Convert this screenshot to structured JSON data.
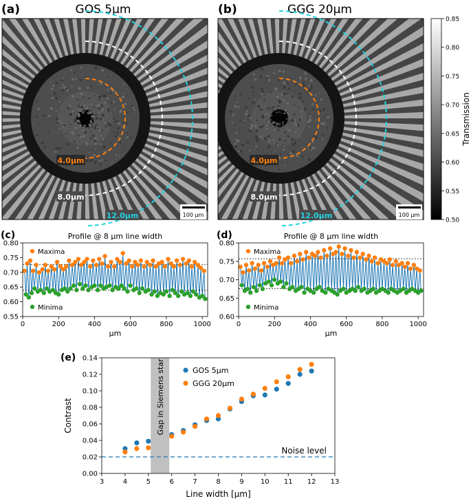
{
  "panels": {
    "a": {
      "letter": "(a)",
      "title": "GOS 5µm",
      "label_4": "4.0µm",
      "label_8": "8.0µm",
      "label_12": "12.0µm",
      "scalebar": "100 µm"
    },
    "b": {
      "letter": "(b)",
      "title": "GGG 20µm",
      "label_4": "4.0µm",
      "label_8": "8.0µm",
      "label_12": "12.0µm",
      "scalebar": "100 µm"
    }
  },
  "colorbar": {
    "label": "Transmission",
    "ticks": [
      "0.85",
      "0.80",
      "0.75",
      "0.70",
      "0.65",
      "0.60",
      "0.55",
      "0.50"
    ]
  },
  "colors": {
    "orange": "#ff7f0e",
    "blue": "#1f77b4",
    "green": "#2ca02c",
    "cyan": "#22d3e0",
    "gray_band": "#c0c0c0"
  },
  "chart_data": [
    {
      "id": "c",
      "letter": "(c)",
      "type": "line",
      "title": "Profile @ 8 µm line width",
      "xlabel": "µm",
      "xlim": [
        0,
        1030
      ],
      "ylim": [
        0.55,
        0.8
      ],
      "xticks": [
        0,
        200,
        400,
        600,
        800,
        1000
      ],
      "yticks": [
        "0.55",
        "0.60",
        "0.65",
        "0.70",
        "0.75",
        "0.80"
      ],
      "legend_maxima": "Maxima",
      "legend_minima": "Minima",
      "maxima_mean": 0.727,
      "minima_mean": 0.639,
      "maxima": [
        [
          10,
          0.705
        ],
        [
          25,
          0.73
        ],
        [
          42,
          0.74
        ],
        [
          58,
          0.705
        ],
        [
          75,
          0.725
        ],
        [
          92,
          0.7
        ],
        [
          110,
          0.71
        ],
        [
          126,
          0.725
        ],
        [
          142,
          0.705
        ],
        [
          160,
          0.72
        ],
        [
          176,
          0.71
        ],
        [
          192,
          0.735
        ],
        [
          210,
          0.72
        ],
        [
          226,
          0.71
        ],
        [
          242,
          0.72
        ],
        [
          258,
          0.74
        ],
        [
          276,
          0.725
        ],
        [
          292,
          0.735
        ],
        [
          310,
          0.745
        ],
        [
          326,
          0.725
        ],
        [
          342,
          0.735
        ],
        [
          358,
          0.745
        ],
        [
          376,
          0.72
        ],
        [
          392,
          0.74
        ],
        [
          410,
          0.725
        ],
        [
          426,
          0.745
        ],
        [
          442,
          0.73
        ],
        [
          458,
          0.755
        ],
        [
          476,
          0.72
        ],
        [
          492,
          0.735
        ],
        [
          510,
          0.72
        ],
        [
          526,
          0.745
        ],
        [
          542,
          0.735
        ],
        [
          558,
          0.765
        ],
        [
          576,
          0.73
        ],
        [
          592,
          0.74
        ],
        [
          610,
          0.72
        ],
        [
          626,
          0.735
        ],
        [
          642,
          0.725
        ],
        [
          658,
          0.74
        ],
        [
          676,
          0.72
        ],
        [
          692,
          0.735
        ],
        [
          710,
          0.725
        ],
        [
          726,
          0.74
        ],
        [
          742,
          0.72
        ],
        [
          758,
          0.73
        ],
        [
          776,
          0.735
        ],
        [
          792,
          0.72
        ],
        [
          810,
          0.745
        ],
        [
          826,
          0.73
        ],
        [
          842,
          0.72
        ],
        [
          858,
          0.74
        ],
        [
          876,
          0.725
        ],
        [
          892,
          0.745
        ],
        [
          910,
          0.73
        ],
        [
          926,
          0.74
        ],
        [
          942,
          0.72
        ],
        [
          958,
          0.735
        ],
        [
          976,
          0.725
        ],
        [
          992,
          0.715
        ],
        [
          1010,
          0.705
        ]
      ],
      "minima": [
        [
          18,
          0.625
        ],
        [
          34,
          0.615
        ],
        [
          50,
          0.63
        ],
        [
          66,
          0.645
        ],
        [
          84,
          0.635
        ],
        [
          100,
          0.64
        ],
        [
          118,
          0.63
        ],
        [
          134,
          0.645
        ],
        [
          150,
          0.635
        ],
        [
          168,
          0.64
        ],
        [
          184,
          0.63
        ],
        [
          200,
          0.625
        ],
        [
          218,
          0.64
        ],
        [
          234,
          0.645
        ],
        [
          250,
          0.635
        ],
        [
          266,
          0.645
        ],
        [
          284,
          0.655
        ],
        [
          300,
          0.64
        ],
        [
          318,
          0.66
        ],
        [
          334,
          0.645
        ],
        [
          350,
          0.655
        ],
        [
          366,
          0.64
        ],
        [
          384,
          0.65
        ],
        [
          400,
          0.655
        ],
        [
          418,
          0.64
        ],
        [
          434,
          0.655
        ],
        [
          450,
          0.645
        ],
        [
          466,
          0.65
        ],
        [
          484,
          0.655
        ],
        [
          500,
          0.64
        ],
        [
          518,
          0.65
        ],
        [
          534,
          0.645
        ],
        [
          550,
          0.655
        ],
        [
          566,
          0.645
        ],
        [
          584,
          0.635
        ],
        [
          600,
          0.655
        ],
        [
          618,
          0.64
        ],
        [
          634,
          0.645
        ],
        [
          650,
          0.63
        ],
        [
          666,
          0.645
        ],
        [
          684,
          0.635
        ],
        [
          700,
          0.64
        ],
        [
          718,
          0.625
        ],
        [
          734,
          0.635
        ],
        [
          750,
          0.62
        ],
        [
          766,
          0.63
        ],
        [
          784,
          0.625
        ],
        [
          800,
          0.635
        ],
        [
          818,
          0.62
        ],
        [
          834,
          0.64
        ],
        [
          850,
          0.63
        ],
        [
          866,
          0.62
        ],
        [
          884,
          0.635
        ],
        [
          900,
          0.625
        ],
        [
          918,
          0.63
        ],
        [
          934,
          0.62
        ],
        [
          950,
          0.635
        ],
        [
          966,
          0.625
        ],
        [
          984,
          0.615
        ],
        [
          1000,
          0.62
        ],
        [
          1016,
          0.61
        ]
      ]
    },
    {
      "id": "d",
      "letter": "(d)",
      "type": "line",
      "title": "Profile @ 8 µm line width",
      "xlabel": "µm",
      "xlim": [
        0,
        1030
      ],
      "ylim": [
        0.6,
        0.8
      ],
      "xticks": [
        0,
        200,
        400,
        600,
        800,
        1000
      ],
      "yticks": [
        "0.60",
        "0.65",
        "0.70",
        "0.75",
        "0.80"
      ],
      "legend_maxima": "Maxima",
      "legend_minima": "Minima",
      "maxima_mean": 0.757,
      "minima_mean": 0.676,
      "maxima": [
        [
          10,
          0.735
        ],
        [
          25,
          0.72
        ],
        [
          42,
          0.74
        ],
        [
          58,
          0.725
        ],
        [
          75,
          0.745
        ],
        [
          92,
          0.73
        ],
        [
          110,
          0.74
        ],
        [
          126,
          0.725
        ],
        [
          142,
          0.745
        ],
        [
          160,
          0.735
        ],
        [
          176,
          0.75
        ],
        [
          192,
          0.74
        ],
        [
          210,
          0.745
        ],
        [
          226,
          0.76
        ],
        [
          242,
          0.745
        ],
        [
          258,
          0.755
        ],
        [
          276,
          0.76
        ],
        [
          292,
          0.745
        ],
        [
          310,
          0.765
        ],
        [
          326,
          0.75
        ],
        [
          342,
          0.77
        ],
        [
          358,
          0.755
        ],
        [
          376,
          0.775
        ],
        [
          392,
          0.76
        ],
        [
          410,
          0.77
        ],
        [
          426,
          0.765
        ],
        [
          442,
          0.775
        ],
        [
          458,
          0.76
        ],
        [
          476,
          0.78
        ],
        [
          492,
          0.765
        ],
        [
          510,
          0.785
        ],
        [
          526,
          0.77
        ],
        [
          542,
          0.775
        ],
        [
          558,
          0.79
        ],
        [
          576,
          0.77
        ],
        [
          592,
          0.785
        ],
        [
          610,
          0.765
        ],
        [
          626,
          0.78
        ],
        [
          642,
          0.76
        ],
        [
          658,
          0.775
        ],
        [
          676,
          0.76
        ],
        [
          692,
          0.77
        ],
        [
          710,
          0.755
        ],
        [
          726,
          0.765
        ],
        [
          742,
          0.75
        ],
        [
          758,
          0.76
        ],
        [
          776,
          0.745
        ],
        [
          792,
          0.755
        ],
        [
          810,
          0.75
        ],
        [
          826,
          0.745
        ],
        [
          842,
          0.755
        ],
        [
          858,
          0.74
        ],
        [
          876,
          0.75
        ],
        [
          892,
          0.74
        ],
        [
          910,
          0.745
        ],
        [
          926,
          0.735
        ],
        [
          942,
          0.745
        ],
        [
          958,
          0.73
        ],
        [
          976,
          0.74
        ],
        [
          992,
          0.73
        ],
        [
          1010,
          0.725
        ]
      ],
      "minima": [
        [
          18,
          0.685
        ],
        [
          34,
          0.67
        ],
        [
          50,
          0.675
        ],
        [
          66,
          0.665
        ],
        [
          84,
          0.68
        ],
        [
          100,
          0.67
        ],
        [
          118,
          0.685
        ],
        [
          134,
          0.675
        ],
        [
          150,
          0.69
        ],
        [
          168,
          0.695
        ],
        [
          184,
          0.685
        ],
        [
          200,
          0.7
        ],
        [
          218,
          0.69
        ],
        [
          234,
          0.695
        ],
        [
          250,
          0.68
        ],
        [
          266,
          0.69
        ],
        [
          284,
          0.675
        ],
        [
          300,
          0.68
        ],
        [
          318,
          0.67
        ],
        [
          334,
          0.675
        ],
        [
          350,
          0.68
        ],
        [
          366,
          0.665
        ],
        [
          384,
          0.675
        ],
        [
          400,
          0.67
        ],
        [
          418,
          0.665
        ],
        [
          434,
          0.675
        ],
        [
          450,
          0.68
        ],
        [
          466,
          0.67
        ],
        [
          484,
          0.665
        ],
        [
          500,
          0.675
        ],
        [
          518,
          0.67
        ],
        [
          534,
          0.665
        ],
        [
          550,
          0.66
        ],
        [
          566,
          0.67
        ],
        [
          584,
          0.675
        ],
        [
          600,
          0.665
        ],
        [
          618,
          0.67
        ],
        [
          634,
          0.675
        ],
        [
          650,
          0.67
        ],
        [
          666,
          0.68
        ],
        [
          684,
          0.67
        ],
        [
          700,
          0.675
        ],
        [
          718,
          0.665
        ],
        [
          734,
          0.67
        ],
        [
          750,
          0.675
        ],
        [
          766,
          0.665
        ],
        [
          784,
          0.67
        ],
        [
          800,
          0.675
        ],
        [
          818,
          0.67
        ],
        [
          834,
          0.665
        ],
        [
          850,
          0.675
        ],
        [
          866,
          0.67
        ],
        [
          884,
          0.665
        ],
        [
          900,
          0.67
        ],
        [
          918,
          0.675
        ],
        [
          934,
          0.665
        ],
        [
          950,
          0.67
        ],
        [
          966,
          0.675
        ],
        [
          984,
          0.67
        ],
        [
          1000,
          0.665
        ],
        [
          1016,
          0.67
        ]
      ]
    },
    {
      "id": "e",
      "letter": "(e)",
      "type": "scatter",
      "xlabel": "Line width [µm]",
      "ylabel": "Contrast",
      "xlim": [
        3,
        13
      ],
      "ylim": [
        0.0,
        0.14
      ],
      "xticks": [
        "3",
        "4",
        "5",
        "6",
        "7",
        "8",
        "9",
        "10",
        "11",
        "12",
        "13"
      ],
      "yticks": [
        "0.00",
        "0.02",
        "0.04",
        "0.06",
        "0.08",
        "0.10",
        "0.12",
        "0.14"
      ],
      "gap_range": [
        5.1,
        5.9
      ],
      "gap_label": "Gap in Siemens star",
      "noise_level": 0.02,
      "noise_label": "Noise level",
      "series": [
        {
          "name": "GOS 5µm",
          "color": "#1f77b4",
          "x": [
            4.0,
            4.5,
            5.0,
            6.0,
            6.5,
            7.0,
            7.5,
            8.0,
            8.5,
            9.0,
            9.5,
            10.0,
            10.5,
            11.0,
            11.5,
            12.0
          ],
          "y": [
            0.03,
            0.037,
            0.039,
            0.047,
            0.052,
            0.059,
            0.064,
            0.066,
            0.078,
            0.087,
            0.094,
            0.095,
            0.102,
            0.109,
            0.12,
            0.124
          ]
        },
        {
          "name": "GGG 20µm",
          "color": "#ff7f0e",
          "x": [
            4.0,
            4.5,
            5.0,
            6.0,
            6.5,
            7.0,
            7.5,
            8.0,
            8.5,
            9.0,
            9.5,
            10.0,
            10.5,
            11.0,
            11.5,
            12.0
          ],
          "y": [
            0.026,
            0.03,
            0.031,
            0.045,
            0.05,
            0.057,
            0.066,
            0.07,
            0.079,
            0.09,
            0.096,
            0.103,
            0.111,
            0.117,
            0.126,
            0.132
          ]
        }
      ]
    }
  ]
}
